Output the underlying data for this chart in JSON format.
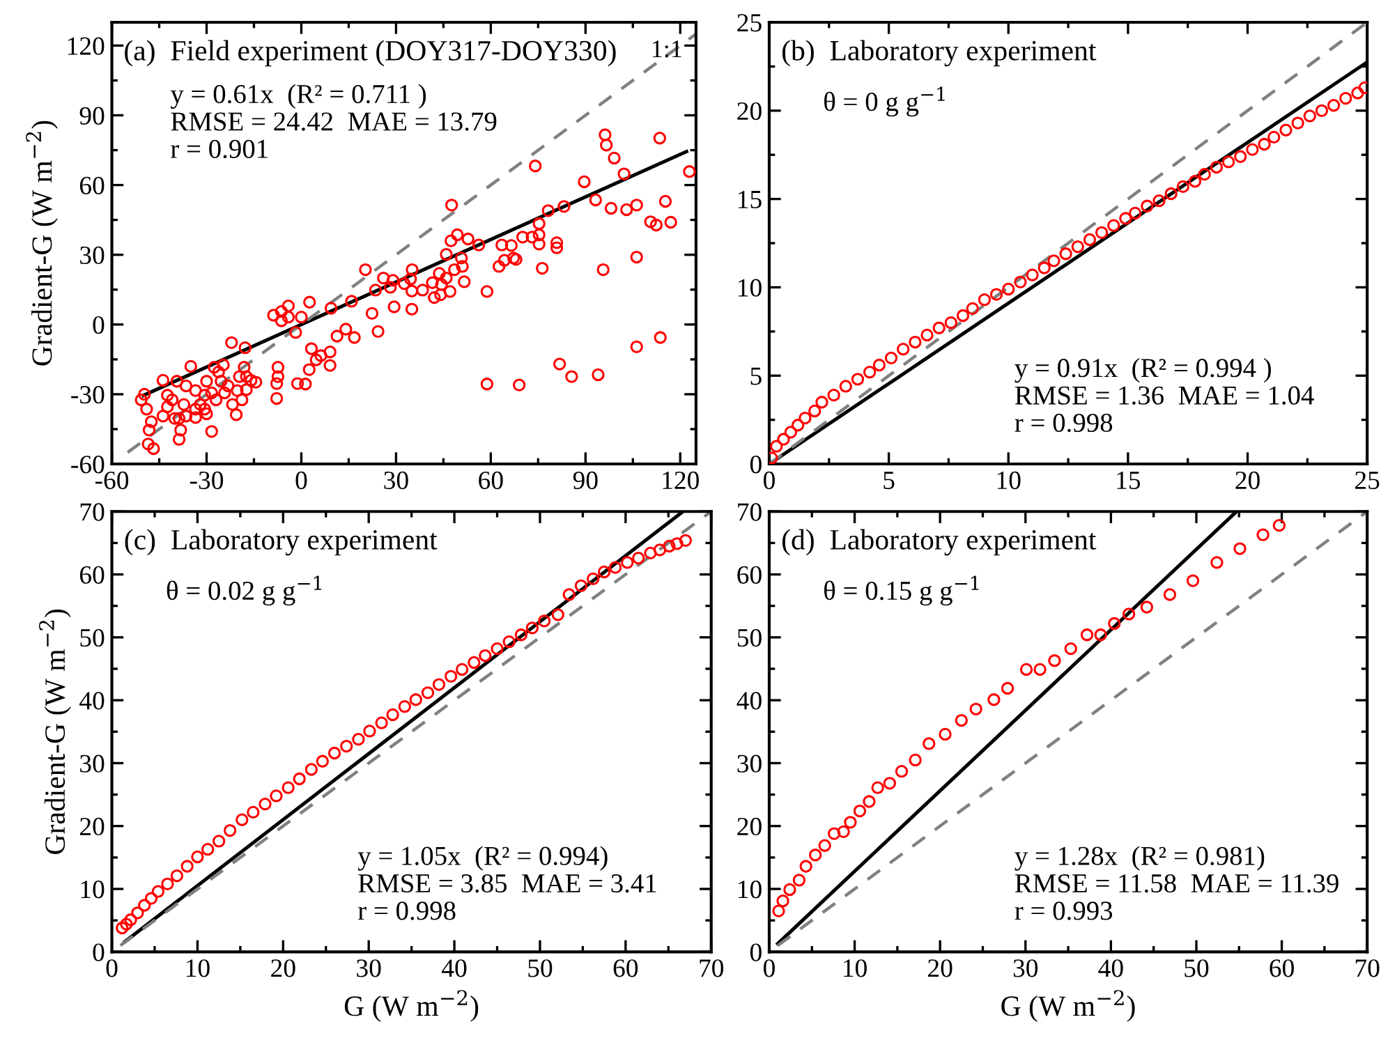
{
  "chart_data": [
    {
      "type": "scatter",
      "title": "(a)  Field experiment (DOY317-DOY330)",
      "ylabel": "Gradient-G (W m$^{−2}$)",
      "annotations": [
        {
          "text": "1:1",
          "x": 115.7,
          "y": 117.6
        },
        "y = 0.61x  (R² = 0.711 )",
        "RMSE = 24.42  MAE = 13.79",
        "r = 0.901"
      ],
      "xlim": [
        -60,
        125
      ],
      "ylim": [
        -60,
        130
      ],
      "xticks": [
        -60,
        -30,
        0,
        30,
        60,
        90,
        120
      ],
      "yticks": [
        -60,
        -30,
        0,
        30,
        60,
        90,
        120
      ],
      "series": [
        {
          "color": "#ff0000",
          "marker": "circle",
          "x": [
            96.2,
            96.6,
            99.1,
            113.5,
            122.9,
            74.1,
            102.2,
            89.6,
            93.2,
            98.1,
            103,
            106.2,
            115.3,
            110.6,
            112.4,
            117,
            106.2,
            95.6,
            106.2,
            113.7,
            94,
            85.6,
            81.8,
            69,
            58.8,
            78.2,
            83.2,
            75.3,
            75.3,
            70.1,
            73.1,
            80.9,
            80.9,
            75.3,
            76.3,
            63.5,
            66.5,
            62.6,
            64.3,
            67.2,
            68,
            56.2,
            52.8,
            49.4,
            47.4,
            47.6,
            45.9,
            50.7,
            51,
            48.5,
            51.6,
            58.8,
            45.9,
            43.7,
            41.5,
            44.4,
            47.1,
            42.1,
            44.1,
            35.1,
            32.6,
            34.6,
            38.4,
            35,
            35,
            29,
            28.2,
            29.4,
            26,
            23.5,
            20.3,
            22.4,
            24.3,
            15.9,
            16.8,
            14.1,
            11.3,
            9.4,
            9.1,
            9.1,
            6.2,
            4.7,
            3.2,
            2.5,
            1.3,
            -1.2,
            2.6,
            0,
            -1.8,
            -4.1,
            -4.1,
            -6.3,
            -8.8,
            -6.3,
            -7.4,
            -7.4,
            -7.8,
            -7.8,
            -22.1,
            -17.8,
            -14.4,
            -15.9,
            -19.6,
            -20.6,
            -24.7,
            -26.2,
            -23.2,
            -28.4,
            -27.6,
            -30,
            -30.6,
            -35,
            -33.5,
            -33.5,
            -36.5,
            -37.2,
            -38.7,
            -38.7,
            -38.2,
            -39.4,
            -40.9,
            -42.4,
            -43.8,
            -40.1,
            -32,
            -30,
            -27,
            -20.3,
            -17.4,
            -21.8,
            -18.8,
            -46.8,
            -48.5,
            -48.2,
            -47.5,
            -49,
            -49.7,
            -50.7,
            -42.4,
            -43.8,
            -36.5,
            -33.5,
            -30.6,
            -28.4,
            -25.4,
            -24.3,
            -17.4,
            -18.1
          ],
          "values": [
            81.6,
            77.2,
            71.6,
            80.2,
            65.8,
            68.2,
            64.8,
            61.4,
            53.6,
            50,
            49.4,
            51.4,
            53,
            44.2,
            42.8,
            44,
            29,
            23.6,
            -9.6,
            -5.6,
            -21.6,
            -22.4,
            -17,
            -26,
            -25.6,
            49,
            50.8,
            43.4,
            38.6,
            37.6,
            37.6,
            35.2,
            33,
            34.6,
            24.2,
            34.2,
            34,
            25,
            27.6,
            28.6,
            28,
            34.2,
            36.8,
            38.6,
            36,
            51.4,
            30.2,
            28.6,
            25,
            23.6,
            18.4,
            14.2,
            20,
            22,
            18,
            17.2,
            14.2,
            11.6,
            12.8,
            23.6,
            17.6,
            19.6,
            14.8,
            14.4,
            6.6,
            19,
            16,
            7.6,
            20,
            14.8,
            23.6,
            4.8,
            -3,
            10,
            -5.6,
            -2,
            -5,
            7,
            -11.8,
            -17.6,
            -13.4,
            -15.2,
            -10.4,
            -19.4,
            -25.6,
            -25.4,
            9.6,
            3.2,
            -3.4,
            8,
            3.2,
            5.6,
            4,
            1.6,
            -18.4,
            -22.4,
            -25.4,
            -31.8,
            -7.8,
            -10,
            -24.8,
            -24,
            -22.4,
            -38.8,
            -17.4,
            -20.4,
            -26.4,
            -46,
            -18.4,
            -24.4,
            -30.4,
            -18,
            -28.4,
            -36.4,
            -26.4,
            -34.4,
            -40.4,
            -49.4,
            -45.4,
            -24.4,
            -32.4,
            -35.4,
            -24,
            -40.4,
            -34.4,
            -38.4,
            -32.4,
            -28.4,
            -28,
            -34.4,
            -32.4,
            -53.4,
            -51.4,
            -45.4,
            -41.8,
            -36.4,
            -30,
            -32.4,
            -30.4,
            -39.4,
            -39.4,
            -40,
            -36.4,
            -29.4,
            -24.4,
            -29.4,
            -22.4,
            -18.4
          ]
        },
        {
          "type": "line",
          "color": "#000000",
          "line_style": "solid",
          "x": [
            -50,
            122
          ],
          "values": [
            -30.5,
            74.4
          ]
        },
        {
          "type": "line",
          "color": "#808080",
          "line_style": "dashed",
          "x": [
            -55,
            125
          ],
          "values": [
            -55,
            125
          ]
        }
      ]
    },
    {
      "type": "scatter",
      "title": "(b)  Laboratory experiment",
      "subtitle": "θ = 0 g g$^{−1}$",
      "annotations": [
        "y = 0.91x  (R² = 0.994 )",
        "RMSE = 1.36  MAE = 1.04",
        "r = 0.998"
      ],
      "xlim": [
        0,
        25
      ],
      "ylim": [
        0,
        25
      ],
      "xticks": [
        0,
        5,
        10,
        15,
        20,
        25
      ],
      "yticks": [
        0,
        5,
        10,
        15,
        20,
        25
      ],
      "series": [
        {
          "color": "#ff0000",
          "marker": "circle",
          "x": [
            0.1,
            0.3,
            0.6,
            0.9,
            1.2,
            1.5,
            1.9,
            2.2,
            2.7,
            3.2,
            3.7,
            4.2,
            4.6,
            5.1,
            5.6,
            6.1,
            6.6,
            7.1,
            7.6,
            8.1,
            8.5,
            9.0,
            9.5,
            10.0,
            10.5,
            11.0,
            11.5,
            11.9,
            12.4,
            12.9,
            13.4,
            13.9,
            14.4,
            14.9,
            15.3,
            15.8,
            16.3,
            16.8,
            17.3,
            17.8,
            18.2,
            18.7,
            19.2,
            19.7,
            20.2,
            20.7,
            21.1,
            21.6,
            22.1,
            22.6,
            23.1,
            23.6,
            24.1,
            24.6,
            24.9
          ],
          "values": [
            0.34,
            1.0,
            1.4,
            1.8,
            2.2,
            2.6,
            3.0,
            3.5,
            3.9,
            4.4,
            4.8,
            5.2,
            5.6,
            6.0,
            6.5,
            6.9,
            7.3,
            7.7,
            8.0,
            8.4,
            8.8,
            9.3,
            9.6,
            9.9,
            10.3,
            10.7,
            11.1,
            11.5,
            11.9,
            12.3,
            12.7,
            13.1,
            13.5,
            13.9,
            14.2,
            14.6,
            14.9,
            15.3,
            15.7,
            16.0,
            16.4,
            16.8,
            17.1,
            17.4,
            17.8,
            18.1,
            18.5,
            18.9,
            19.3,
            19.7,
            20.0,
            20.3,
            20.7,
            21.0,
            21.3
          ]
        },
        {
          "type": "line",
          "color": "#000000",
          "line_style": "solid",
          "x": [
            0,
            25
          ],
          "values": [
            0,
            22.75
          ]
        },
        {
          "type": "line",
          "color": "#808080",
          "line_style": "dashed",
          "x": [
            0,
            25
          ],
          "values": [
            0,
            25
          ]
        }
      ]
    },
    {
      "type": "scatter",
      "title": "(c)  Laboratory experiment",
      "subtitle": "θ = 0.02 g g$^{−1}$",
      "xlabel": "G (W m$^{−2}$)",
      "ylabel": "Gradient-G (W m$^{−2}$)",
      "annotations": [
        "y = 1.05x  (R² = 0.994)",
        "RMSE = 3.85  MAE = 3.41",
        "r = 0.998"
      ],
      "xlim": [
        0,
        70
      ],
      "ylim": [
        0,
        70
      ],
      "xticks": [
        0,
        10,
        20,
        30,
        40,
        50,
        60,
        70
      ],
      "yticks": [
        0,
        10,
        20,
        30,
        40,
        50,
        60,
        70
      ],
      "series": [
        {
          "color": "#ff0000",
          "marker": "circle",
          "x": [
            1.2,
            1.7,
            2.2,
            3.0,
            3.8,
            4.6,
            5.4,
            6.5,
            7.6,
            8.8,
            10,
            11.2,
            12.5,
            13.8,
            15.2,
            16.5,
            17.9,
            19.2,
            20.6,
            21.9,
            23.3,
            24.6,
            26,
            27.4,
            28.8,
            30.1,
            31.5,
            32.8,
            34.2,
            35.5,
            36.9,
            38.2,
            39.6,
            40.9,
            42.3,
            43.6,
            45,
            46.4,
            47.8,
            49.1,
            50.5,
            52.1,
            53.4,
            54.8,
            56.2,
            57.5,
            58.8,
            60.2,
            61.5,
            62.9,
            64,
            65.1,
            66,
            67
          ],
          "values": [
            3.8,
            4.4,
            5.1,
            6.2,
            7.4,
            8.5,
            9.6,
            10.8,
            12.1,
            13.6,
            15.1,
            16.3,
            17.6,
            19.3,
            21,
            22.2,
            23.5,
            24.8,
            26.1,
            27.5,
            29,
            30.3,
            31.6,
            32.7,
            33.8,
            35.1,
            36.4,
            37.7,
            39,
            40.1,
            41.2,
            42.5,
            43.8,
            44.9,
            46,
            47.1,
            48.2,
            49.3,
            50.4,
            51.5,
            52.6,
            53.6,
            56.8,
            58.2,
            59.3,
            60.4,
            61.1,
            61.9,
            62.6,
            63.4,
            63.9,
            64.5,
            64.9,
            65.4
          ]
        },
        {
          "type": "line",
          "color": "#000000",
          "line_style": "solid",
          "x": [
            1.5,
            66.7
          ],
          "values": [
            1.6,
            70.0
          ]
        },
        {
          "type": "line",
          "color": "#808080",
          "line_style": "dashed",
          "x": [
            1,
            70
          ],
          "values": [
            1,
            70
          ]
        }
      ]
    },
    {
      "type": "scatter",
      "title": "(d)  Laboratory experiment",
      "subtitle": "θ = 0.15 g g$^{−1}$",
      "xlabel": "G (W m$^{−2}$)",
      "annotations": [
        "y = 1.28x  (R² = 0.981)",
        "RMSE = 11.58  MAE = 11.39",
        "r = 0.993"
      ],
      "xlim": [
        0,
        70
      ],
      "ylim": [
        0,
        70
      ],
      "xticks": [
        0,
        10,
        20,
        30,
        40,
        50,
        60,
        70
      ],
      "yticks": [
        0,
        10,
        20,
        30,
        40,
        50,
        60,
        70
      ],
      "series": [
        {
          "color": "#ff0000",
          "marker": "circle",
          "x": [
            1.1,
            1.6,
            2.4,
            3.5,
            4.3,
            5.4,
            6.5,
            7.6,
            8.7,
            9.5,
            10.6,
            11.7,
            12.7,
            14.1,
            15.5,
            17.1,
            18.7,
            20.6,
            22.5,
            24.2,
            26.3,
            27.9,
            30.1,
            31.7,
            33.4,
            35.3,
            37.2,
            38.8,
            40.4,
            42.1,
            44.2,
            46.9,
            49.6,
            52.4,
            55.1,
            57.8,
            59.7
          ],
          "values": [
            6.5,
            8.1,
            9.9,
            11.4,
            13.6,
            15.4,
            16.9,
            18.8,
            19.1,
            20.6,
            22.4,
            23.9,
            26.1,
            26.8,
            28.7,
            30.5,
            33.1,
            34.6,
            36.8,
            38.6,
            40.1,
            41.9,
            44.9,
            44.9,
            46.3,
            48.2,
            50.4,
            50.4,
            52.2,
            53.7,
            54.8,
            56.8,
            59,
            61.9,
            64.1,
            66.3,
            67.8
          ]
        },
        {
          "type": "line",
          "color": "#000000",
          "line_style": "solid",
          "x": [
            1,
            54.7
          ],
          "values": [
            1.3,
            70.0
          ]
        },
        {
          "type": "line",
          "color": "#808080",
          "line_style": "dashed",
          "x": [
            1,
            70
          ],
          "values": [
            1,
            70
          ]
        }
      ]
    }
  ]
}
